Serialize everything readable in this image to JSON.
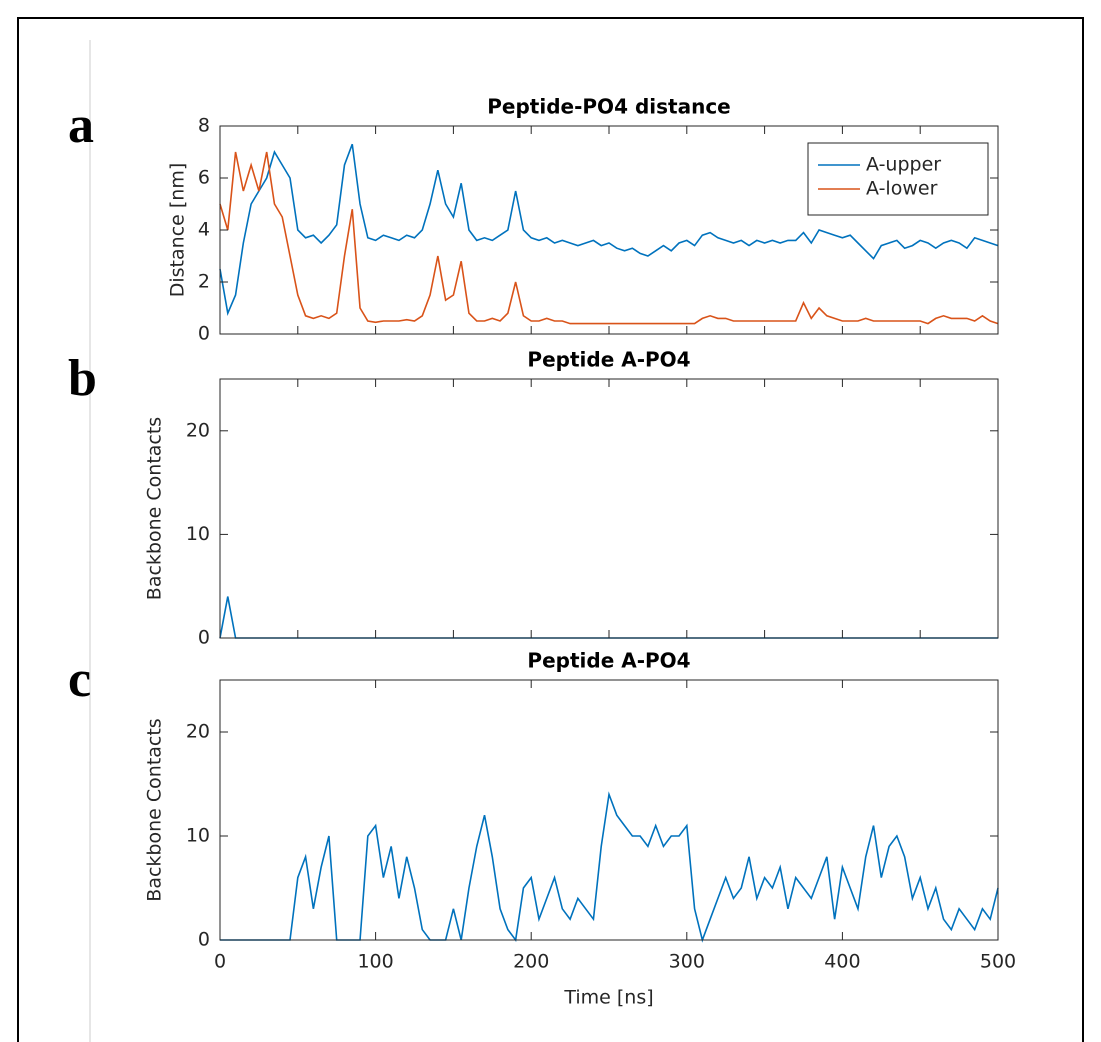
{
  "chart_data": [
    {
      "type": "line",
      "panel": "a",
      "title": "Peptide-PO4 distance",
      "ylabel": "Distance [nm]",
      "x": [
        0,
        5,
        10,
        15,
        20,
        25,
        30,
        35,
        40,
        45,
        50,
        55,
        60,
        65,
        70,
        75,
        80,
        85,
        90,
        95,
        100,
        105,
        110,
        115,
        120,
        125,
        130,
        135,
        140,
        145,
        150,
        155,
        160,
        165,
        170,
        175,
        180,
        185,
        190,
        195,
        200,
        205,
        210,
        215,
        220,
        225,
        230,
        235,
        240,
        245,
        250,
        255,
        260,
        265,
        270,
        275,
        280,
        285,
        290,
        295,
        300,
        305,
        310,
        315,
        320,
        325,
        330,
        335,
        340,
        345,
        350,
        355,
        360,
        365,
        370,
        375,
        380,
        385,
        390,
        395,
        400,
        405,
        410,
        415,
        420,
        425,
        430,
        435,
        440,
        445,
        450,
        455,
        460,
        465,
        470,
        475,
        480,
        485,
        490,
        495,
        500
      ],
      "series": [
        {
          "name": "A-upper",
          "color": "#0072bd",
          "values": [
            2.5,
            0.8,
            1.5,
            3.5,
            5,
            5.5,
            6,
            7,
            6.5,
            6,
            4,
            3.7,
            3.8,
            3.5,
            3.8,
            4.2,
            6.5,
            7.3,
            5,
            3.7,
            3.6,
            3.8,
            3.7,
            3.6,
            3.8,
            3.7,
            4,
            5,
            6.3,
            5,
            4.5,
            5.8,
            4,
            3.6,
            3.7,
            3.6,
            3.8,
            4,
            5.5,
            4,
            3.7,
            3.6,
            3.7,
            3.5,
            3.6,
            3.5,
            3.4,
            3.5,
            3.6,
            3.4,
            3.5,
            3.3,
            3.2,
            3.3,
            3.1,
            3.0,
            3.2,
            3.4,
            3.2,
            3.5,
            3.6,
            3.4,
            3.8,
            3.9,
            3.7,
            3.6,
            3.5,
            3.6,
            3.4,
            3.6,
            3.5,
            3.6,
            3.5,
            3.6,
            3.6,
            3.9,
            3.5,
            4,
            3.9,
            3.8,
            3.7,
            3.8,
            3.5,
            3.2,
            2.9,
            3.4,
            3.5,
            3.6,
            3.3,
            3.4,
            3.6,
            3.5,
            3.3,
            3.5,
            3.6,
            3.5,
            3.3,
            3.7,
            3.6,
            3.5,
            3.4
          ]
        },
        {
          "name": "A-lower",
          "color": "#d95319",
          "values": [
            5,
            4,
            7,
            5.5,
            6.5,
            5.5,
            7,
            5,
            4.5,
            3,
            1.5,
            0.7,
            0.6,
            0.7,
            0.6,
            0.8,
            3,
            4.8,
            1,
            0.5,
            0.45,
            0.5,
            0.5,
            0.5,
            0.55,
            0.5,
            0.7,
            1.5,
            3,
            1.3,
            1.5,
            2.8,
            0.8,
            0.5,
            0.5,
            0.6,
            0.5,
            0.8,
            2,
            0.7,
            0.5,
            0.5,
            0.6,
            0.5,
            0.5,
            0.4,
            0.4,
            0.4,
            0.4,
            0.4,
            0.4,
            0.4,
            0.4,
            0.4,
            0.4,
            0.4,
            0.4,
            0.4,
            0.4,
            0.4,
            0.4,
            0.4,
            0.6,
            0.7,
            0.6,
            0.6,
            0.5,
            0.5,
            0.5,
            0.5,
            0.5,
            0.5,
            0.5,
            0.5,
            0.5,
            1.2,
            0.6,
            1,
            0.7,
            0.6,
            0.5,
            0.5,
            0.5,
            0.6,
            0.5,
            0.5,
            0.5,
            0.5,
            0.5,
            0.5,
            0.5,
            0.4,
            0.6,
            0.7,
            0.6,
            0.6,
            0.6,
            0.5,
            0.7,
            0.5,
            0.4
          ]
        }
      ],
      "xlim": [
        0,
        500
      ],
      "xticks": [
        0,
        50,
        100,
        150,
        200,
        250,
        300,
        350,
        400,
        450,
        500
      ],
      "show_xtick_labels": false,
      "ylim": [
        0,
        8
      ],
      "yticks": [
        0,
        2,
        4,
        6,
        8
      ],
      "legend": "northeast"
    },
    {
      "type": "line",
      "panel": "b",
      "title": "Peptide A-PO4",
      "ylabel": "Backbone Contacts",
      "x": [
        0,
        5,
        10,
        15,
        20,
        25,
        30,
        35,
        40,
        45,
        50,
        55,
        60,
        65,
        70,
        75,
        80,
        85,
        90,
        95,
        100,
        105,
        110,
        115,
        120,
        125,
        130,
        135,
        140,
        145,
        150,
        155,
        160,
        165,
        170,
        175,
        180,
        185,
        190,
        195,
        200,
        205,
        210,
        215,
        220,
        225,
        230,
        235,
        240,
        245,
        250,
        255,
        260,
        265,
        270,
        275,
        280,
        285,
        290,
        295,
        300,
        305,
        310,
        315,
        320,
        325,
        330,
        335,
        340,
        345,
        350,
        355,
        360,
        365,
        370,
        375,
        380,
        385,
        390,
        395,
        400,
        405,
        410,
        415,
        420,
        425,
        430,
        435,
        440,
        445,
        450,
        455,
        460,
        465,
        470,
        475,
        480,
        485,
        490,
        495,
        500
      ],
      "series": [
        {
          "name": "A-PO4",
          "color": "#0072bd",
          "values": [
            0,
            4,
            0,
            0,
            0,
            0,
            0,
            0,
            0,
            0,
            0,
            0,
            0,
            0,
            0,
            0,
            0,
            0,
            0,
            0,
            0,
            0,
            0,
            0,
            0,
            0,
            0,
            0,
            0,
            0,
            0,
            0,
            0,
            0,
            0,
            0,
            0,
            0,
            0,
            0,
            0,
            0,
            0,
            0,
            0,
            0,
            0,
            0,
            0,
            0,
            0,
            0,
            0,
            0,
            0,
            0,
            0,
            0,
            0,
            0,
            0,
            0,
            0,
            0,
            0,
            0,
            0,
            0,
            0,
            0,
            0,
            0,
            0,
            0,
            0,
            0,
            0,
            0,
            0,
            0,
            0,
            0,
            0,
            0,
            0,
            0,
            0,
            0,
            0,
            0,
            0,
            0,
            0,
            0,
            0,
            0,
            0,
            0,
            0,
            0,
            0
          ]
        }
      ],
      "xlim": [
        0,
        500
      ],
      "xticks": [
        0,
        50,
        100,
        150,
        200,
        250,
        300,
        350,
        400,
        450,
        500
      ],
      "show_xtick_labels": false,
      "ylim": [
        0,
        25
      ],
      "yticks": [
        0,
        10,
        20
      ]
    },
    {
      "type": "line",
      "panel": "c",
      "title": "Peptide A-PO4",
      "ylabel": "Backbone Contacts",
      "xlabel": "Time [ns]",
      "x": [
        0,
        5,
        10,
        15,
        20,
        25,
        30,
        35,
        40,
        45,
        50,
        55,
        60,
        65,
        70,
        75,
        80,
        85,
        90,
        95,
        100,
        105,
        110,
        115,
        120,
        125,
        130,
        135,
        140,
        145,
        150,
        155,
        160,
        165,
        170,
        175,
        180,
        185,
        190,
        195,
        200,
        205,
        210,
        215,
        220,
        225,
        230,
        235,
        240,
        245,
        250,
        255,
        260,
        265,
        270,
        275,
        280,
        285,
        290,
        295,
        300,
        305,
        310,
        315,
        320,
        325,
        330,
        335,
        340,
        345,
        350,
        355,
        360,
        365,
        370,
        375,
        380,
        385,
        390,
        395,
        400,
        405,
        410,
        415,
        420,
        425,
        430,
        435,
        440,
        445,
        450,
        455,
        460,
        465,
        470,
        475,
        480,
        485,
        490,
        495,
        500
      ],
      "series": [
        {
          "name": "A-PO4",
          "color": "#0072bd",
          "values": [
            0,
            0,
            0,
            0,
            0,
            0,
            0,
            0,
            0,
            0,
            6,
            8,
            3,
            7,
            10,
            0,
            0,
            0,
            0,
            10,
            11,
            6,
            9,
            4,
            8,
            5,
            1,
            0,
            0,
            0,
            3,
            0,
            5,
            9,
            12,
            8,
            3,
            1,
            0,
            5,
            6,
            2,
            4,
            6,
            3,
            2,
            4,
            3,
            2,
            9,
            14,
            12,
            11,
            10,
            10,
            9,
            11,
            9,
            10,
            10,
            11,
            3,
            0,
            2,
            4,
            6,
            4,
            5,
            8,
            4,
            6,
            5,
            7,
            3,
            6,
            5,
            4,
            6,
            8,
            2,
            7,
            5,
            3,
            8,
            11,
            6,
            9,
            10,
            8,
            4,
            6,
            3,
            5,
            2,
            1,
            3,
            2,
            1,
            3,
            2,
            5
          ]
        }
      ],
      "xlim": [
        0,
        500
      ],
      "xticks": [
        0,
        100,
        200,
        300,
        400,
        500
      ],
      "show_xtick_labels": true,
      "ylim": [
        0,
        25
      ],
      "yticks": [
        0,
        10,
        20
      ]
    }
  ]
}
